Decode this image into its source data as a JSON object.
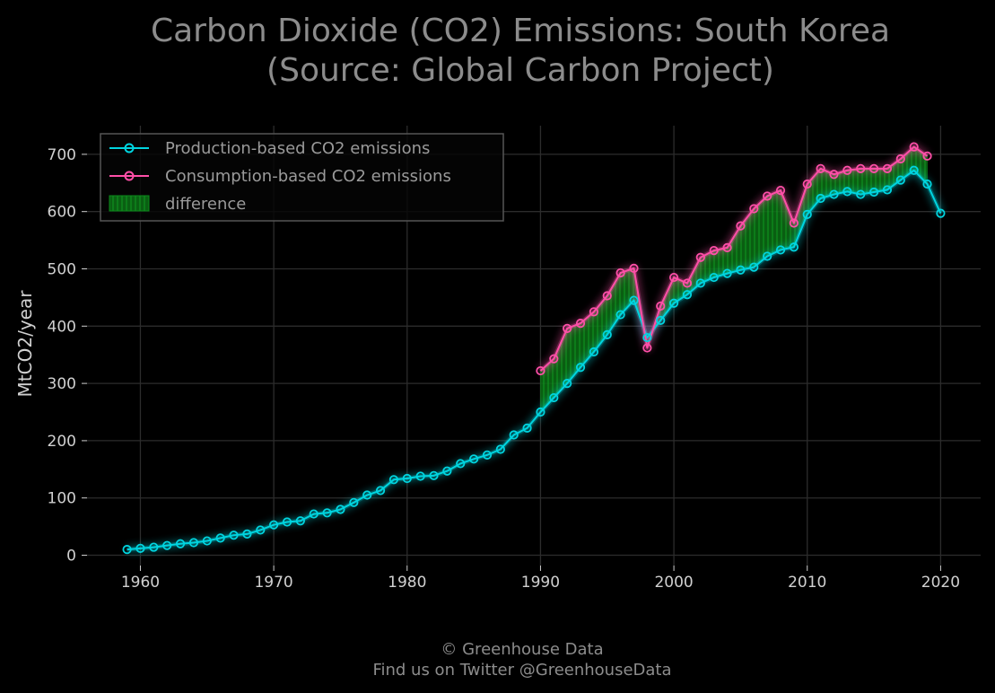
{
  "chart_data": {
    "type": "line",
    "title_line1": "Carbon Dioxide (CO2) Emissions: South Korea",
    "title_line2": "(Source: Global Carbon Project)",
    "xlabel": "",
    "ylabel": "MtCO2/year",
    "xlim": [
      1956,
      2023
    ],
    "ylim": [
      -18,
      750
    ],
    "x_ticks": [
      1960,
      1970,
      1980,
      1990,
      2000,
      2010,
      2020
    ],
    "y_ticks": [
      0,
      100,
      200,
      300,
      400,
      500,
      600,
      700
    ],
    "grid": true,
    "legend_position": "top-left",
    "series": [
      {
        "name": "Production-based CO2 emissions",
        "color": "#00d5e0",
        "x": [
          1959,
          1960,
          1961,
          1962,
          1963,
          1964,
          1965,
          1966,
          1967,
          1968,
          1969,
          1970,
          1971,
          1972,
          1973,
          1974,
          1975,
          1976,
          1977,
          1978,
          1979,
          1980,
          1981,
          1982,
          1983,
          1984,
          1985,
          1986,
          1987,
          1988,
          1989,
          1990,
          1991,
          1992,
          1993,
          1994,
          1995,
          1996,
          1997,
          1998,
          1999,
          2000,
          2001,
          2002,
          2003,
          2004,
          2005,
          2006,
          2007,
          2008,
          2009,
          2010,
          2011,
          2012,
          2013,
          2014,
          2015,
          2016,
          2017,
          2018,
          2019,
          2020
        ],
        "values": [
          10,
          12,
          14,
          17,
          20,
          22,
          25,
          30,
          35,
          37,
          44,
          53,
          58,
          60,
          72,
          74,
          80,
          92,
          105,
          113,
          132,
          134,
          138,
          139,
          147,
          160,
          168,
          175,
          185,
          210,
          222,
          250,
          275,
          300,
          328,
          355,
          385,
          420,
          445,
          380,
          410,
          440,
          455,
          475,
          485,
          492,
          498,
          503,
          522,
          533,
          538,
          595,
          623,
          630,
          635,
          630,
          634,
          638,
          655,
          672,
          648,
          597
        ]
      },
      {
        "name": "Consumption-based CO2 emissions",
        "color": "#ff4fa8",
        "x": [
          1990,
          1991,
          1992,
          1993,
          1994,
          1995,
          1996,
          1997,
          1998,
          1999,
          2000,
          2001,
          2002,
          2003,
          2004,
          2005,
          2006,
          2007,
          2008,
          2009,
          2010,
          2011,
          2012,
          2013,
          2014,
          2015,
          2016,
          2017,
          2018,
          2019
        ],
        "values": [
          322,
          343,
          396,
          405,
          425,
          453,
          493,
          501,
          362,
          435,
          485,
          475,
          520,
          532,
          537,
          575,
          605,
          627,
          637,
          580,
          648,
          675,
          665,
          672,
          675,
          675,
          675,
          692,
          713,
          697
        ]
      }
    ],
    "fill": {
      "name": "difference",
      "color": "#0b8a1a"
    }
  },
  "footer": {
    "line1": "© Greenhouse Data",
    "line2": "Find us on Twitter @GreenhouseData"
  }
}
